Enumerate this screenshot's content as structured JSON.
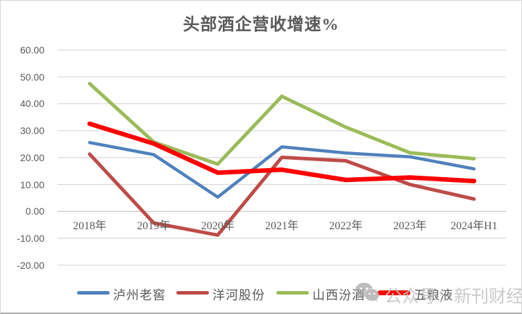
{
  "chart_data": {
    "type": "line",
    "title": "头部酒企营收增速%",
    "categories": [
      "2018年",
      "2019年",
      "2020年",
      "2021年",
      "2022年",
      "2023年",
      "2024年H1"
    ],
    "series": [
      {
        "name": "泸州老窖",
        "color": "#4F81BD",
        "line_width": 4.5,
        "values": [
          25.6,
          21.1,
          5.3,
          24.0,
          21.7,
          20.3,
          15.8
        ]
      },
      {
        "name": "洋河股份",
        "color": "#BE4B48",
        "line_width": 5,
        "values": [
          21.3,
          -4.3,
          -8.8,
          20.1,
          18.8,
          10.0,
          4.6
        ]
      },
      {
        "name": "山西汾酒",
        "color": "#9BBB59",
        "line_width": 5,
        "values": [
          47.5,
          25.8,
          17.6,
          42.8,
          31.3,
          21.8,
          19.6
        ]
      },
      {
        "name": "五粮液",
        "color": "#FF0000",
        "line_width": 6.5,
        "values": [
          32.6,
          25.2,
          14.4,
          15.5,
          11.7,
          12.6,
          11.3
        ]
      }
    ],
    "ylim": [
      -20,
      60
    ],
    "ytick_step": 10,
    "ytick_labels": [
      "60.00",
      "50.00",
      "40.00",
      "30.00",
      "20.00",
      "10.00",
      "0.00",
      "-10.00",
      "-20.00"
    ],
    "xlabel": "",
    "ylabel": "",
    "grid": true,
    "legend_position": "bottom"
  },
  "watermark": {
    "icon": "wechat-icon",
    "text": "公众号：新刊财经"
  },
  "colors": {
    "title_text": "#595959",
    "axis_text": "#595959",
    "gridline": "#D8D8D8",
    "axis_line": "#C2C2C2",
    "watermark_text": "#C6C6C6",
    "watermark_icon": "#A8A8A8"
  }
}
